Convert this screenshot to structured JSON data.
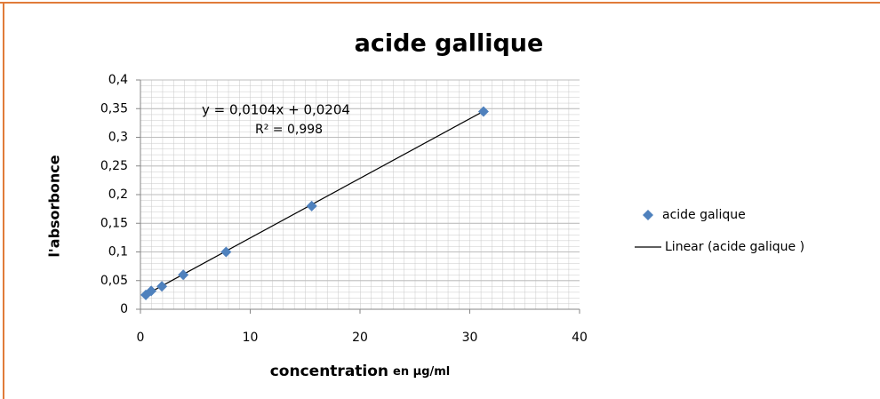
{
  "chart_data": {
    "type": "scatter",
    "title": "acide gallique",
    "y_label": "l'absorbonce",
    "x_label": {
      "main": "concentration",
      "unit": "en µg/ml"
    },
    "annotations": [
      "y = 0,0104x + 0,0204",
      "R² = 0,998"
    ],
    "series": [
      {
        "name": "acide galique",
        "color": "#4f81bd",
        "x": [
          0.49,
          0.98,
          1.95,
          3.9,
          7.8,
          15.6,
          31.25
        ],
        "values": [
          0.025,
          0.032,
          0.04,
          0.06,
          0.1,
          0.18,
          0.345
        ]
      }
    ],
    "trendline": {
      "name": "Linear (acide galique )",
      "color": "#000000",
      "slope": 0.0104,
      "intercept": 0.0204
    },
    "xlim": [
      0,
      40
    ],
    "xticks": [
      0,
      10,
      20,
      30,
      40
    ],
    "ylim": [
      0,
      0.4
    ],
    "yticks": [
      0,
      {
        "value": 0.05,
        "label": "0,05"
      },
      {
        "value": 0.1,
        "label": "0,1"
      },
      {
        "value": 0.15,
        "label": "0,15"
      },
      {
        "value": 0.2,
        "label": "0,2"
      },
      {
        "value": 0.25,
        "label": "0,25"
      },
      {
        "value": 0.3,
        "label": "0,3"
      },
      {
        "value": 0.35,
        "label": "0,35"
      },
      {
        "value": 0.4,
        "label": "0,4"
      }
    ],
    "grid": true,
    "minor_grid": {
      "x": 1,
      "y": 0.01
    },
    "legend": "right"
  }
}
